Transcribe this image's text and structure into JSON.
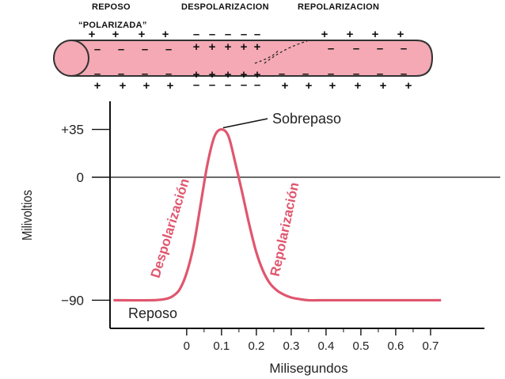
{
  "diagram": {
    "labels": {
      "reposo": "REPOSO",
      "despolarizacion": "DESPOLARIZACION",
      "repolarizacion": "REPOLARIZACION",
      "polarizada": "“POLARIZADA”"
    },
    "plus": "+",
    "minus": "–",
    "colors": {
      "fiber": "#f4a9b4",
      "fiber_edge": "#333333"
    }
  },
  "chart_data": {
    "type": "line",
    "title": "",
    "xlabel": "Milisegundos",
    "ylabel": "Milivoltios",
    "xlim": [
      -0.22,
      0.9
    ],
    "ylim": [
      -110,
      55
    ],
    "x_ticks": [
      0,
      0.1,
      0.2,
      0.3,
      0.4,
      0.5,
      0.6,
      0.7
    ],
    "x_tick_labels": [
      "0",
      "0.1",
      "0.2",
      "0.3",
      "0.4",
      "0.5",
      "0.6",
      "0.7"
    ],
    "y_ticks": [
      35,
      0,
      -90
    ],
    "y_tick_labels": [
      "+35",
      "0",
      "−90"
    ],
    "zero_line": true,
    "series": [
      {
        "color": "#e0566e",
        "x": [
          -0.21,
          -0.1,
          -0.06,
          -0.04,
          -0.02,
          0,
          0.02,
          0.04,
          0.06,
          0.08,
          0.1,
          0.12,
          0.14,
          0.16,
          0.18,
          0.2,
          0.22,
          0.24,
          0.26,
          0.28,
          0.3,
          0.32,
          0.35,
          0.4,
          0.5,
          0.6,
          0.7,
          0.73
        ],
        "y": [
          -90,
          -90,
          -89,
          -87,
          -82,
          -70,
          -50,
          -20,
          10,
          30,
          35,
          30,
          10,
          -12,
          -35,
          -55,
          -69,
          -78,
          -83,
          -86,
          -88,
          -89,
          -90,
          -90,
          -90,
          -90,
          -90,
          -90
        ]
      }
    ],
    "annotations": {
      "peak": "Sobrepaso",
      "rise": "Despolarización",
      "fall": "Repolarización",
      "rest": "Reposo"
    }
  }
}
